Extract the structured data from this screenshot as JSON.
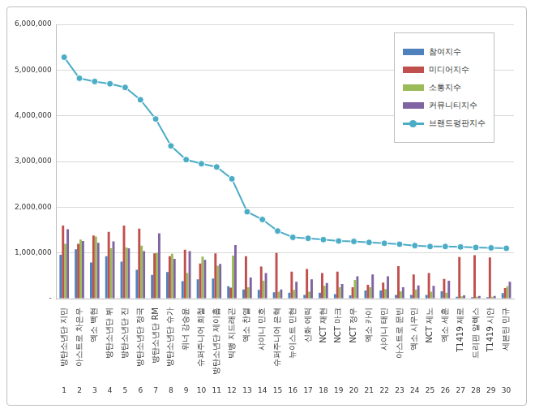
{
  "chart_data": {
    "type": "bar",
    "categories": [
      "방탄소년단 지민",
      "아스트로 차은우",
      "엑소 백현",
      "방탄소년단 뷔",
      "방탄소년단 진",
      "방탄소년단 정국",
      "방탄소년단 RM",
      "방탄소년단 슈가",
      "위너 강승윤",
      "슈퍼주니어 희철",
      "방탄소년단 제이홉",
      "빅뱅 지드래곤",
      "엑소 찬열",
      "샤이니 민호",
      "슈퍼주니어 은혁",
      "뉴이스트 민현",
      "신화 에릭",
      "NCT 재현",
      "NCT 마크",
      "NCT 정우",
      "엑소 카이",
      "샤이니 태민",
      "아스트로 문빈",
      "엑소 시우민",
      "NCT 제노",
      "엑소 세훈",
      "T1419 제로",
      "드리핀 알렉스",
      "T1419 시안",
      "세븐틴 민규"
    ],
    "ranks": [
      1,
      2,
      3,
      4,
      5,
      6,
      7,
      8,
      9,
      10,
      11,
      12,
      13,
      14,
      15,
      16,
      17,
      18,
      19,
      20,
      21,
      22,
      23,
      24,
      25,
      26,
      27,
      28,
      29,
      30
    ],
    "series": [
      {
        "name": "참여지수",
        "type": "bar",
        "color": "#4f81bd",
        "values": [
          960000,
          1080000,
          790000,
          930000,
          810000,
          630000,
          520000,
          580000,
          380000,
          420000,
          440000,
          270000,
          200000,
          190000,
          140000,
          130000,
          80000,
          130000,
          100000,
          70000,
          180000,
          180000,
          80000,
          80000,
          80000,
          160000,
          40000,
          30000,
          30000,
          120000
        ]
      },
      {
        "name": "미디어지수",
        "type": "bar",
        "color": "#c0504d",
        "values": [
          1600000,
          1200000,
          1380000,
          1460000,
          1600000,
          1530000,
          990000,
          930000,
          1070000,
          770000,
          990000,
          240000,
          930000,
          700000,
          1000000,
          590000,
          650000,
          560000,
          590000,
          250000,
          300000,
          350000,
          710000,
          530000,
          560000,
          430000,
          910000,
          950000,
          900000,
          230000
        ]
      },
      {
        "name": "소통지수",
        "type": "bar",
        "color": "#9bbb59",
        "values": [
          1200000,
          1290000,
          1360000,
          1100000,
          1120000,
          1160000,
          1000000,
          980000,
          560000,
          920000,
          720000,
          940000,
          250000,
          390000,
          150000,
          190000,
          150000,
          280000,
          250000,
          410000,
          250000,
          210000,
          160000,
          200000,
          150000,
          130000,
          50000,
          40000,
          40000,
          270000
        ]
      },
      {
        "name": "커뮤니티지수",
        "type": "bar",
        "color": "#8064a2",
        "values": [
          1520000,
          1260000,
          1220000,
          1250000,
          1100000,
          1040000,
          1430000,
          870000,
          1040000,
          850000,
          760000,
          1170000,
          460000,
          560000,
          200000,
          370000,
          420000,
          340000,
          320000,
          490000,
          530000,
          490000,
          250000,
          290000,
          280000,
          390000,
          70000,
          60000,
          60000,
          370000
        ]
      },
      {
        "name": "브랜드평판지수",
        "type": "line",
        "color": "#4bacc6",
        "marker": "circle",
        "values": [
          5280000,
          4820000,
          4750000,
          4700000,
          4620000,
          4350000,
          3930000,
          3340000,
          3040000,
          2950000,
          2880000,
          2620000,
          1900000,
          1730000,
          1480000,
          1340000,
          1320000,
          1290000,
          1260000,
          1250000,
          1230000,
          1210000,
          1190000,
          1160000,
          1140000,
          1140000,
          1130000,
          1120000,
          1110000,
          1100000
        ]
      }
    ],
    "ylim": [
      0,
      6000000
    ],
    "yticks": [
      {
        "value": 0,
        "label": "-"
      },
      {
        "value": 1000000,
        "label": "1,000,000"
      },
      {
        "value": 2000000,
        "label": "2,000,000"
      },
      {
        "value": 3000000,
        "label": "3,000,000"
      },
      {
        "value": 4000000,
        "label": "4,000,000"
      },
      {
        "value": 5000000,
        "label": "5,000,000"
      },
      {
        "value": 6000000,
        "label": "6,000,000"
      }
    ],
    "grid": true,
    "legend": "upper right"
  }
}
